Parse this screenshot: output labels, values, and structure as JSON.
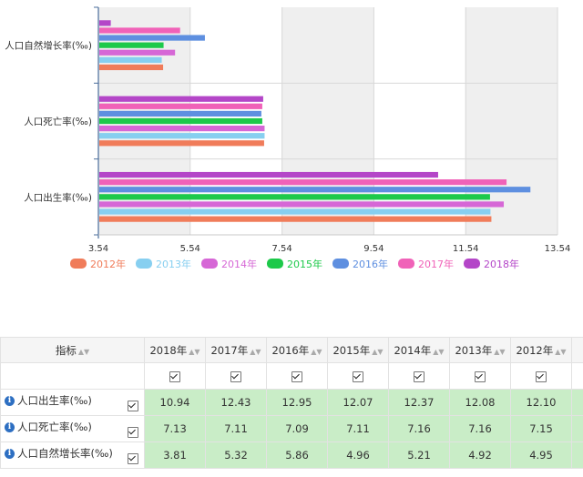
{
  "chart_data": {
    "type": "bar",
    "orientation": "horizontal",
    "categories": [
      "人口自然增长率(‰)",
      "人口死亡率(‰)",
      "人口出生率(‰)"
    ],
    "series": [
      {
        "name": "2012年",
        "color": "#f07c5a",
        "values": [
          4.95,
          7.15,
          12.1
        ]
      },
      {
        "name": "2013年",
        "color": "#87cff0",
        "values": [
          4.92,
          7.16,
          12.08
        ]
      },
      {
        "name": "2014年",
        "color": "#d667d6",
        "values": [
          5.21,
          7.16,
          12.37
        ]
      },
      {
        "name": "2015年",
        "color": "#1dc94a",
        "values": [
          4.96,
          7.11,
          12.07
        ]
      },
      {
        "name": "2016年",
        "color": "#5e8fe0",
        "values": [
          5.86,
          7.09,
          12.95
        ]
      },
      {
        "name": "2017年",
        "color": "#f062b8",
        "values": [
          5.32,
          7.11,
          12.43
        ]
      },
      {
        "name": "2018年",
        "color": "#b446c8",
        "values": [
          3.81,
          7.13,
          10.94
        ]
      }
    ],
    "xlim": [
      3.54,
      13.54
    ],
    "xticks": [
      "3.54",
      "5.54",
      "7.54",
      "9.54",
      "11.54",
      "13.54"
    ],
    "grid": true,
    "legend_position": "bottom",
    "title": "",
    "xlabel": "",
    "ylabel": ""
  },
  "table": {
    "header_label": "指标",
    "years": [
      "2018年",
      "2017年",
      "2016年",
      "2015年",
      "2014年",
      "2013年",
      "2012年"
    ],
    "rows": [
      {
        "name": "人口出生率(‰)",
        "values": [
          "10.94",
          "12.43",
          "12.95",
          "12.07",
          "12.37",
          "12.08",
          "12.10"
        ]
      },
      {
        "name": "人口死亡率(‰)",
        "values": [
          "7.13",
          "7.11",
          "7.09",
          "7.11",
          "7.16",
          "7.16",
          "7.15"
        ]
      },
      {
        "name": "人口自然增长率(‰)",
        "values": [
          "3.81",
          "5.32",
          "5.86",
          "4.96",
          "5.21",
          "4.92",
          "4.95"
        ]
      }
    ]
  }
}
